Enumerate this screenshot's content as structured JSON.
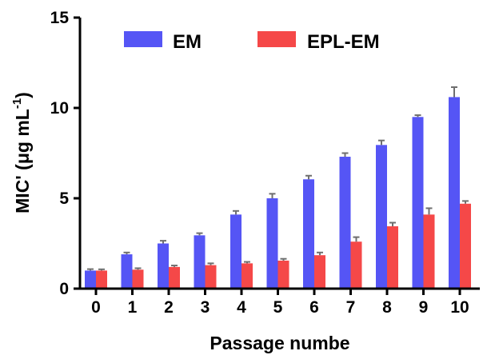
{
  "chart_data": {
    "type": "bar",
    "categories": [
      "0",
      "1",
      "2",
      "3",
      "4",
      "5",
      "6",
      "7",
      "8",
      "9",
      "10"
    ],
    "series": [
      {
        "name": "EM",
        "color": "#5555f5",
        "values": [
          1.0,
          1.9,
          2.5,
          2.95,
          4.1,
          5.0,
          6.05,
          7.3,
          7.95,
          9.5,
          10.6
        ],
        "errors": [
          0.08,
          0.1,
          0.15,
          0.12,
          0.2,
          0.25,
          0.2,
          0.2,
          0.25,
          0.1,
          0.55
        ]
      },
      {
        "name": "EPL-EM",
        "color": "#f54848",
        "values": [
          1.0,
          1.05,
          1.2,
          1.3,
          1.4,
          1.55,
          1.85,
          2.6,
          3.45,
          4.1,
          4.7
        ],
        "errors": [
          0.07,
          0.08,
          0.08,
          0.1,
          0.08,
          0.1,
          0.15,
          0.25,
          0.2,
          0.35,
          0.15
        ]
      }
    ],
    "xlabel": "Passage numbe",
    "ylabel": {
      "text": "MIC' (μg mL",
      "superscript": "-1",
      "close": ")"
    },
    "ylim": [
      0,
      15
    ],
    "yticks": [
      "0",
      "5",
      "10",
      "15"
    ],
    "grid": false,
    "legend_position": "top"
  }
}
